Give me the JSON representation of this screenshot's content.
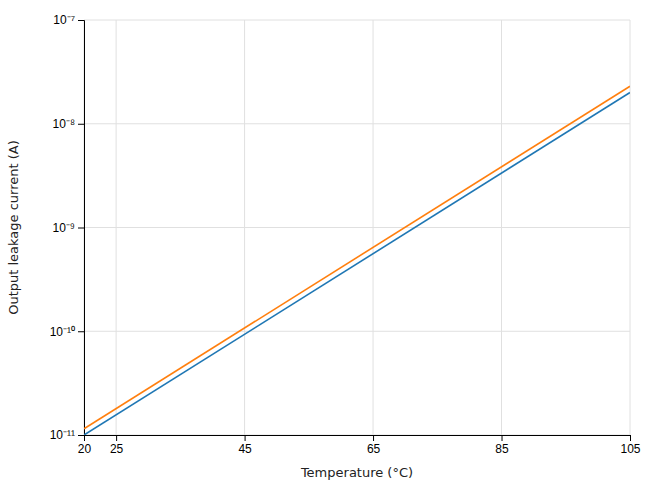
{
  "chart_data": {
    "type": "line",
    "x": [
      20,
      105
    ],
    "series": [
      {
        "values": [
          1e-11,
          2e-08
        ]
      },
      {
        "values": [
          1.15e-11,
          2.3e-08
        ]
      }
    ],
    "xlabel": "Temperature (°C)",
    "ylabel": "Output leakage current (A)",
    "xlim": [
      20,
      105
    ],
    "ylim": [
      1e-11,
      1e-07
    ],
    "xticks": [
      20,
      25,
      45,
      65,
      85,
      105
    ],
    "yticks": [
      {
        "value": 1e-11,
        "label": "10⁻¹¹"
      },
      {
        "value": 1e-10,
        "label": "10⁻¹⁰"
      },
      {
        "value": 1e-09,
        "label": "10⁻⁹"
      },
      {
        "value": 1e-08,
        "label": "10⁻⁸"
      },
      {
        "value": 1e-07,
        "label": "10⁻⁷"
      }
    ],
    "log": "y",
    "grid": true
  }
}
